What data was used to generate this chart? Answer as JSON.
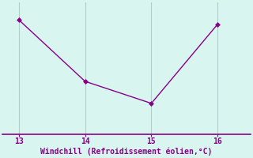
{
  "x": [
    13,
    14,
    15,
    16
  ],
  "y": [
    0.0,
    -2.8,
    -3.8,
    -0.2
  ],
  "line_color": "#880088",
  "marker": "D",
  "marker_size": 3,
  "background_color": "#d8f5f0",
  "grid_color": "#b0d0cc",
  "xlabel": "Windchill (Refroidissement éolien,°C)",
  "xlabel_color": "#880088",
  "xlabel_fontsize": 7,
  "tick_color": "#880088",
  "tick_fontsize": 7,
  "xlim": [
    12.75,
    16.5
  ],
  "ylim": [
    -5.2,
    0.8
  ],
  "xticks": [
    13,
    14,
    15,
    16
  ],
  "spine_color": "#880088",
  "spine_bottom_color": "#880088"
}
